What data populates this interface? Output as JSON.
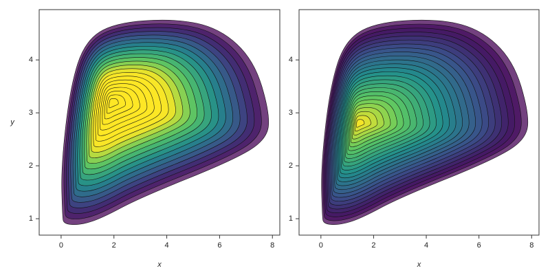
{
  "chart_data": [
    {
      "type": "contour",
      "xlabel": "x",
      "ylabel": "y",
      "xlim": [
        -0.83,
        8.28
      ],
      "ylim": [
        0.69,
        4.95
      ],
      "xticks": [
        0,
        2,
        4,
        6,
        8
      ],
      "yticks": [
        1,
        2,
        3,
        4
      ]
    },
    {
      "type": "contour",
      "xlabel": "x",
      "xlim": [
        -0.83,
        8.28
      ],
      "ylim": [
        0.69,
        4.95
      ],
      "xticks": [
        0,
        2,
        4,
        6,
        8
      ],
      "yticks": [
        1,
        2,
        3,
        4
      ]
    }
  ]
}
